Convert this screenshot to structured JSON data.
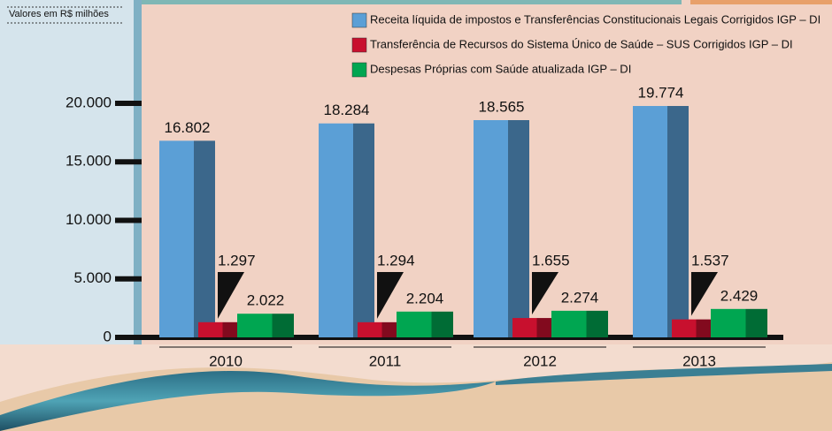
{
  "chart_data": {
    "type": "bar",
    "subtitle": "Valores em R$ milhões",
    "categories": [
      "2010",
      "2011",
      "2012",
      "2013"
    ],
    "series": [
      {
        "name": "Receita líquida de impostos e Transferências Constitucionais Legais Corrigidos IGP – DI",
        "color": "#5b9fd6",
        "values": [
          16802,
          18284,
          18565,
          19774
        ],
        "value_labels": [
          "16.802",
          "18.284",
          "18.565",
          "19.774"
        ]
      },
      {
        "name": "Transferência de Recursos do Sistema Único de Saúde – SUS Corrigidos IGP – DI",
        "color": "#c8102e",
        "values": [
          1297,
          1294,
          1655,
          1537
        ],
        "value_labels": [
          "1.297",
          "1.294",
          "1.655",
          "1.537"
        ]
      },
      {
        "name": "Despesas Próprias com Saúde atualizada IGP – DI",
        "color": "#00a651",
        "values": [
          2022,
          2204,
          2274,
          2429
        ],
        "value_labels": [
          "2.022",
          "2.204",
          "2.274",
          "2.429"
        ]
      }
    ],
    "ylim": [
      0,
      20000
    ],
    "yticks": [
      0,
      {
        "value": 5000,
        "label": "5.000"
      },
      {
        "value": 10000,
        "label": "10.000"
      },
      {
        "value": 15000,
        "label": "15.000"
      },
      {
        "value": 20000,
        "label": "20.000"
      }
    ],
    "legend": "top-right"
  }
}
